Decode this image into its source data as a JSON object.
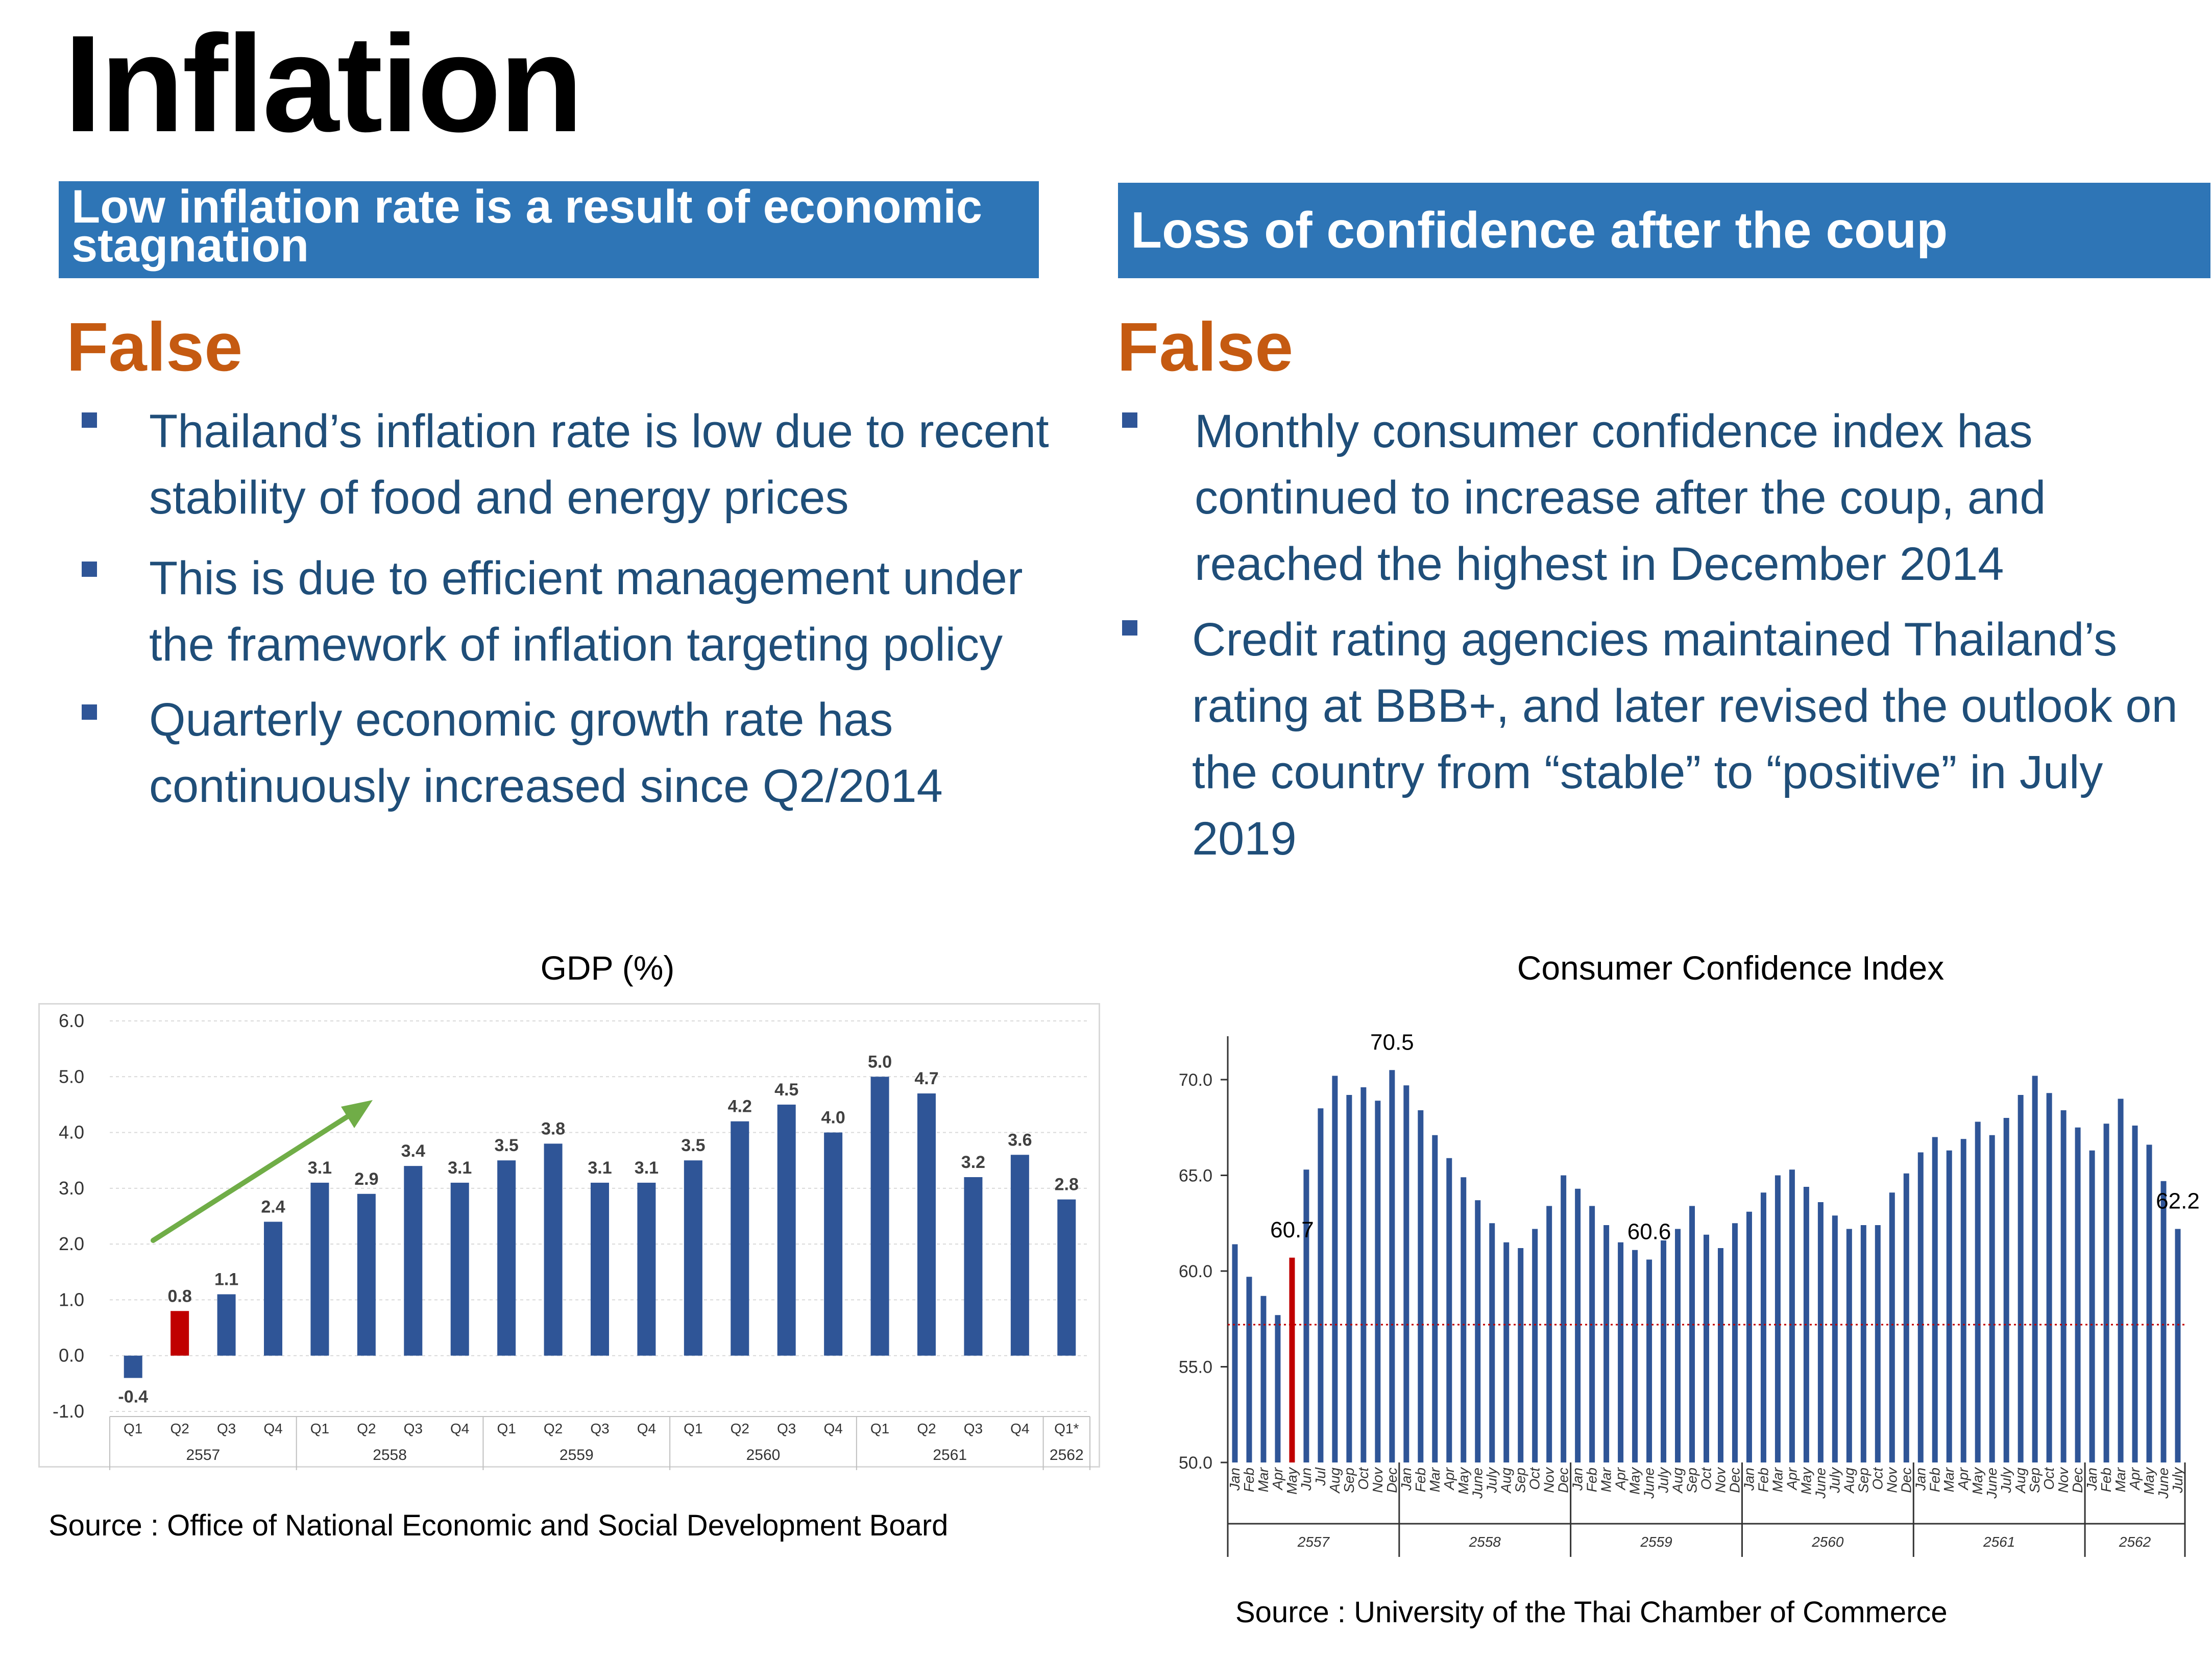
{
  "slide": {
    "title": "Inflation"
  },
  "left": {
    "banner": "Low inflation rate is a result of economic stagnation",
    "verdict": "False",
    "bullets": [
      "Thailand’s inflation rate is low due to recent stability of food and energy prices",
      "This is due to efficient management under the framework of inflation targeting policy",
      "Quarterly economic growth rate has continuously increased since Q2/2014"
    ],
    "chart_title": "GDP (%)",
    "source": "Source : Office of National Economic and Social Development Board"
  },
  "right": {
    "banner": "Loss of confidence after the coup",
    "verdict": "False",
    "bullets": [
      "Monthly consumer confidence index has continued to increase after the coup, and reached the highest in December 2014",
      "Credit rating agencies maintained Thailand’s rating at BBB+, and later revised the outlook on the country from “stable” to “positive” in July 2019"
    ],
    "chart_title": "Consumer Confidence Index",
    "source": "Source : University of the Thai Chamber of Commerce"
  },
  "colors": {
    "banner": "#2e75b6",
    "verdict": "#c55a11",
    "bar": "#2f5597",
    "highlight": "#c00000",
    "trend_arrow": "#70ad47",
    "bullet_text": "#1f4e79"
  },
  "chart_data": [
    {
      "type": "bar",
      "title": "GDP (%)",
      "categories": [
        "Q1",
        "Q2",
        "Q3",
        "Q4",
        "Q1",
        "Q2",
        "Q3",
        "Q4",
        "Q1",
        "Q2",
        "Q3",
        "Q4",
        "Q1",
        "Q2",
        "Q3",
        "Q4",
        "Q1",
        "Q2",
        "Q3",
        "Q4",
        "Q1*"
      ],
      "groups": [
        {
          "label": "2557",
          "count": 4
        },
        {
          "label": "2558",
          "count": 4
        },
        {
          "label": "2559",
          "count": 4
        },
        {
          "label": "2560",
          "count": 4
        },
        {
          "label": "2561",
          "count": 4
        },
        {
          "label": "2562",
          "count": 1
        }
      ],
      "values": [
        -0.4,
        0.8,
        1.1,
        2.4,
        3.1,
        2.9,
        3.4,
        3.1,
        3.5,
        3.8,
        3.1,
        3.1,
        3.5,
        4.2,
        4.5,
        4.0,
        5.0,
        4.7,
        3.2,
        3.6,
        2.8
      ],
      "value_labels": [
        "-0.4",
        "0.8",
        "1.1",
        "2.4",
        "3.1",
        "2.9",
        "3.4",
        "3.1",
        "3.5",
        "3.8",
        "3.1",
        "3.1",
        "3.5",
        "4.2",
        "4.5",
        "4.0",
        "5.0",
        "4.7",
        "3.2",
        "3.6",
        "2.8"
      ],
      "highlight_index": 1,
      "yticks": [
        "6.0",
        "5.0",
        "4.0",
        "3.0",
        "2.0",
        "1.0",
        "0.0",
        "-1.0"
      ],
      "ylim": [
        -1,
        6
      ],
      "grid": true
    },
    {
      "type": "bar",
      "title": "Consumer Confidence Index",
      "month_labels": [
        "Jan",
        "Feb",
        "Mar",
        "Apr",
        "May",
        "Jun",
        "Jul",
        "Aug",
        "Sep",
        "Oct",
        "Nov",
        "Dec",
        "Jan",
        "Feb",
        "Mar",
        "Apr",
        "May",
        "June",
        "July",
        "Aug",
        "Sep",
        "Oct",
        "Nov",
        "Dec",
        "Jan",
        "Feb",
        "Mar",
        "Apr",
        "May",
        "June",
        "July",
        "Aug",
        "Sep",
        "Oct",
        "Nov",
        "Dec",
        "Jan",
        "Feb",
        "Mar",
        "Apr",
        "May",
        "June",
        "July",
        "Aug",
        "Sep",
        "Oct",
        "Nov",
        "Dec",
        "Jan",
        "Feb",
        "Mar",
        "Apr",
        "May",
        "June",
        "July",
        "Aug",
        "Sep",
        "Oct",
        "Nov",
        "Dec",
        "Jan",
        "Feb",
        "Mar",
        "Apr",
        "May",
        "June",
        "July"
      ],
      "groups": [
        {
          "label": "2557",
          "count": 12
        },
        {
          "label": "2558",
          "count": 12
        },
        {
          "label": "2559",
          "count": 12
        },
        {
          "label": "2560",
          "count": 12
        },
        {
          "label": "2561",
          "count": 12
        },
        {
          "label": "2562",
          "count": 7
        }
      ],
      "values": [
        61.4,
        59.7,
        58.7,
        57.7,
        60.7,
        65.3,
        68.5,
        70.2,
        69.2,
        69.6,
        68.9,
        70.5,
        69.7,
        68.4,
        67.1,
        65.9,
        64.9,
        63.7,
        62.5,
        61.5,
        61.2,
        62.2,
        63.4,
        65.0,
        64.3,
        63.4,
        62.4,
        61.5,
        61.1,
        60.6,
        61.6,
        62.2,
        63.4,
        61.9,
        61.2,
        62.5,
        63.1,
        64.1,
        65.0,
        65.3,
        64.4,
        63.6,
        62.9,
        62.2,
        62.4,
        62.4,
        64.1,
        65.1,
        66.2,
        67.0,
        66.3,
        66.9,
        67.8,
        67.1,
        68.0,
        69.2,
        70.2,
        69.3,
        68.4,
        67.5,
        66.3,
        67.7,
        69.0,
        67.6,
        66.6,
        64.7,
        62.2
      ],
      "highlight_index": 4,
      "annotations": [
        {
          "text": "70.5",
          "index": 11
        },
        {
          "text": "60.7",
          "index": 4
        },
        {
          "text": "60.6",
          "index": 29
        },
        {
          "text": "62.2",
          "index": 66
        }
      ],
      "reference_line": 57.2,
      "yticks": [
        "70.0",
        "65.0",
        "60.0",
        "55.0",
        "50.0"
      ],
      "ylim": [
        50,
        72
      ]
    }
  ]
}
